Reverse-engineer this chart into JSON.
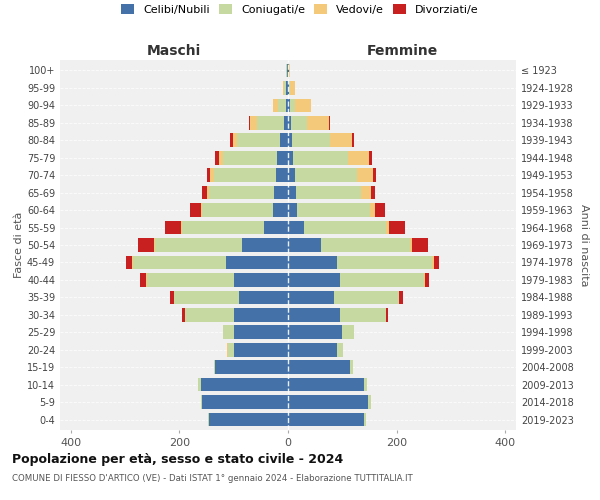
{
  "age_groups": [
    "0-4",
    "5-9",
    "10-14",
    "15-19",
    "20-24",
    "25-29",
    "30-34",
    "35-39",
    "40-44",
    "45-49",
    "50-54",
    "55-59",
    "60-64",
    "65-69",
    "70-74",
    "75-79",
    "80-84",
    "85-89",
    "90-94",
    "95-99",
    "100+"
  ],
  "birth_years": [
    "2019-2023",
    "2014-2018",
    "2009-2013",
    "2004-2008",
    "1999-2003",
    "1994-1998",
    "1989-1993",
    "1984-1988",
    "1979-1983",
    "1974-1978",
    "1969-1973",
    "1964-1968",
    "1959-1963",
    "1954-1958",
    "1949-1953",
    "1944-1948",
    "1939-1943",
    "1934-1938",
    "1929-1933",
    "1924-1928",
    "≤ 1923"
  ],
  "male_celibi": [
    145,
    158,
    160,
    135,
    100,
    100,
    100,
    90,
    100,
    115,
    85,
    45,
    28,
    25,
    22,
    20,
    14,
    8,
    4,
    3,
    2
  ],
  "male_coniugati": [
    2,
    2,
    5,
    2,
    10,
    20,
    90,
    120,
    160,
    170,
    160,
    150,
    130,
    120,
    115,
    100,
    80,
    50,
    15,
    5,
    1
  ],
  "male_vedovi": [
    0,
    0,
    0,
    0,
    2,
    0,
    0,
    0,
    2,
    2,
    2,
    2,
    2,
    4,
    6,
    8,
    8,
    12,
    8,
    2,
    0
  ],
  "male_divorziati": [
    0,
    0,
    0,
    0,
    0,
    0,
    5,
    8,
    10,
    12,
    30,
    30,
    20,
    10,
    6,
    6,
    4,
    2,
    0,
    0,
    0
  ],
  "female_celibi": [
    140,
    148,
    140,
    115,
    90,
    100,
    95,
    85,
    95,
    90,
    60,
    30,
    16,
    14,
    12,
    10,
    8,
    5,
    3,
    2,
    1
  ],
  "female_coniugati": [
    3,
    4,
    6,
    4,
    12,
    22,
    85,
    120,
    155,
    175,
    165,
    150,
    135,
    120,
    115,
    100,
    70,
    30,
    10,
    2,
    0
  ],
  "female_vedovi": [
    0,
    0,
    0,
    0,
    0,
    0,
    0,
    0,
    2,
    4,
    4,
    6,
    10,
    18,
    30,
    40,
    40,
    40,
    30,
    8,
    2
  ],
  "female_divorziati": [
    0,
    0,
    0,
    0,
    0,
    0,
    4,
    6,
    8,
    10,
    28,
    30,
    18,
    8,
    5,
    5,
    4,
    2,
    0,
    0,
    0
  ],
  "colors": {
    "celibi": "#4472a8",
    "coniugati": "#c5d9a0",
    "vedovi": "#f5c97a",
    "divorziati": "#c82020"
  },
  "title": "Popolazione per età, sesso e stato civile - 2024",
  "subtitle": "COMUNE DI FIESSO D'ARTICO (VE) - Dati ISTAT 1° gennaio 2024 - Elaborazione TUTTITALIA.IT",
  "xlabel_left": "Maschi",
  "xlabel_right": "Femmine",
  "ylabel_left": "Fasce di età",
  "ylabel_right": "Anni di nascita",
  "xlim": 420,
  "background_color": "#f0f0f0"
}
